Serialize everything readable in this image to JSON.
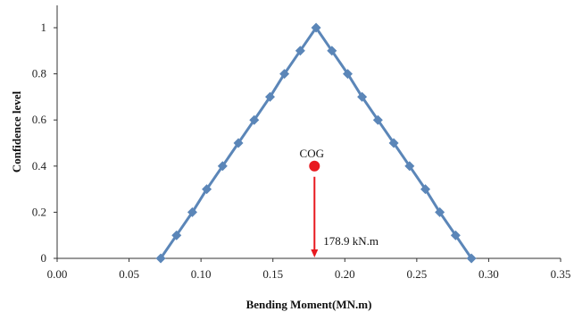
{
  "chart_data": {
    "type": "line",
    "title": "",
    "xlabel": "Bending Moment(MN.m)",
    "ylabel": "Confidence level",
    "xlim": [
      0,
      0.35
    ],
    "ylim": [
      0,
      1.05
    ],
    "x_ticks": [
      "0.00",
      "0.05",
      "0.10",
      "0.15",
      "0.20",
      "0.25",
      "0.30",
      "0.35"
    ],
    "y_ticks": [
      "0",
      "0.2",
      "0.4",
      "0.6",
      "0.8",
      "1"
    ],
    "grid": false,
    "legend": "none",
    "series": [
      {
        "color": "#5b86b8",
        "marker": "diamond",
        "x": [
          0.072,
          0.083,
          0.094,
          0.104,
          0.115,
          0.126,
          0.137,
          0.148,
          0.158,
          0.169,
          0.18,
          0.191,
          0.202,
          0.212,
          0.223,
          0.234,
          0.245,
          0.256,
          0.266,
          0.277,
          0.288
        ],
        "y": [
          0,
          0.1,
          0.2,
          0.3,
          0.4,
          0.5,
          0.6,
          0.7,
          0.8,
          0.9,
          1.0,
          0.9,
          0.8,
          0.7,
          0.6,
          0.5,
          0.4,
          0.3,
          0.2,
          0.1,
          0
        ]
      }
    ],
    "annotations": {
      "cog": {
        "label": "COG",
        "x": 0.1789,
        "y": 0.4,
        "color": "#e8191f"
      },
      "arrow_label": "178.9 kN.m",
      "arrow_color": "#e8191f"
    }
  }
}
